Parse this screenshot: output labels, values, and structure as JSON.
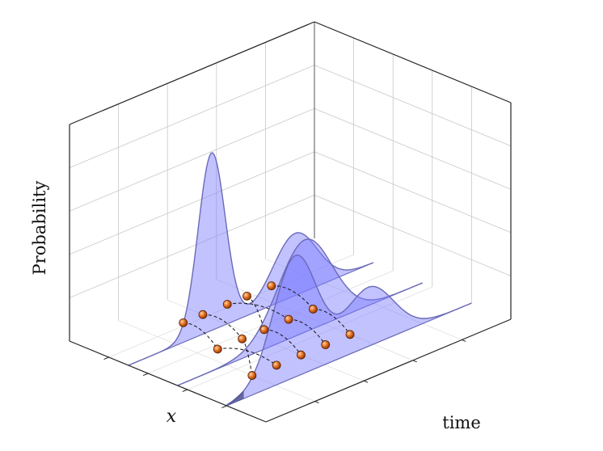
{
  "labels": {
    "x_axis": "x",
    "time_axis": "time",
    "probability_axis": "Probability"
  },
  "colors": {
    "fill": "#7f7fff",
    "stroke": "#6a6ab8",
    "dark_edge": "#4a4a86",
    "particle": "#e06a1f",
    "particle_edge": "#5a1e00",
    "grid": "#c8c8c8",
    "frame": "#222222"
  },
  "distributions": [
    {
      "time_index": 0,
      "components": [
        {
          "mean": 0.32,
          "sd": 0.09,
          "weight": 0.35
        },
        {
          "mean": 0.66,
          "sd": 0.055,
          "weight": 1.0
        }
      ]
    },
    {
      "time_index": 1,
      "components": [
        {
          "mean": 0.48,
          "sd": 0.11,
          "weight": 0.52
        }
      ]
    },
    {
      "time_index": 2,
      "components": [
        {
          "mean": 0.42,
          "sd": 0.1,
          "weight": 0.33
        },
        {
          "mean": 0.72,
          "sd": 0.09,
          "weight": 0.68
        }
      ]
    }
  ],
  "particles": [
    {
      "t": 0,
      "x": 0.32
    },
    {
      "t": 0,
      "x": 0.42
    },
    {
      "t": 0,
      "x": 0.5
    },
    {
      "t": 0,
      "x": 0.6
    },
    {
      "t": 0,
      "x": 0.68
    },
    {
      "t": 1,
      "x": 0.35
    },
    {
      "t": 1,
      "x": 0.45
    },
    {
      "t": 1,
      "x": 0.55
    },
    {
      "t": 1,
      "x": 0.64
    },
    {
      "t": 1,
      "x": 0.74
    },
    {
      "t": 2,
      "x": 0.4
    },
    {
      "t": 2,
      "x": 0.5
    },
    {
      "t": 2,
      "x": 0.6
    },
    {
      "t": 2,
      "x": 0.7
    },
    {
      "t": 2,
      "x": 0.8
    }
  ],
  "transitions": [
    {
      "from": 0,
      "to": 5
    },
    {
      "from": 1,
      "to": 7
    },
    {
      "from": 2,
      "to": 6
    },
    {
      "from": 3,
      "to": 8
    },
    {
      "from": 4,
      "to": 9
    },
    {
      "from": 5,
      "to": 10
    },
    {
      "from": 6,
      "to": 11
    },
    {
      "from": 7,
      "to": 12
    },
    {
      "from": 8,
      "to": 14
    },
    {
      "from": 9,
      "to": 13
    }
  ]
}
